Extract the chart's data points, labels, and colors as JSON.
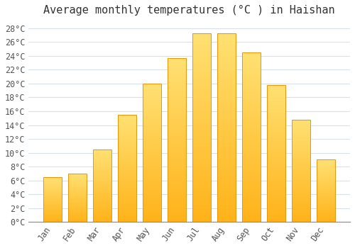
{
  "title": "Average monthly temperatures (°C ) in Haishan",
  "months": [
    "Jan",
    "Feb",
    "Mar",
    "Apr",
    "May",
    "Jun",
    "Jul",
    "Aug",
    "Sep",
    "Oct",
    "Nov",
    "Dec"
  ],
  "values": [
    6.5,
    7.0,
    10.5,
    15.5,
    20.0,
    23.7,
    27.3,
    27.3,
    24.5,
    19.8,
    14.8,
    9.0
  ],
  "bar_color_bottom": "#FFB300",
  "bar_color_top": "#FFD966",
  "background_color": "#FFFFFF",
  "grid_color": "#D8E0E8",
  "ylim": [
    0,
    29
  ],
  "ytick_step": 2,
  "title_fontsize": 11,
  "tick_fontsize": 8.5,
  "tick_font": "monospace"
}
